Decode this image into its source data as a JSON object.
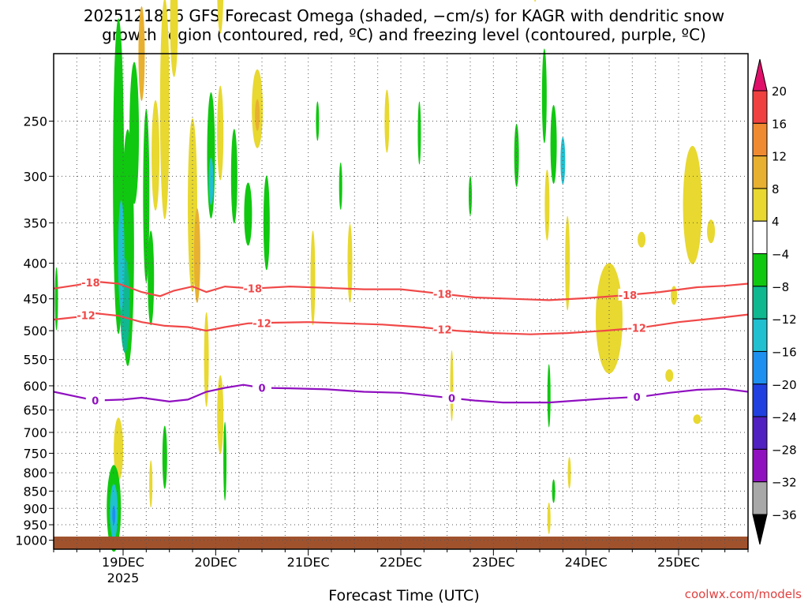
{
  "chart_data": {
    "type": "heatmap",
    "title_line1": "2025121806 GFS Forecast Omega (shaded, −cm/s) for KAGR with dendritic snow",
    "title_line2": "growth region (contoured, red, ºC) and freezing level (contoured, purple, ºC)",
    "xlabel": "Forecast Time (UTC)",
    "ylabel": "",
    "x_ticks": [
      {
        "label": "19DEC",
        "sub": "2025",
        "day": 1
      },
      {
        "label": "20DEC",
        "sub": "",
        "day": 2
      },
      {
        "label": "21DEC",
        "sub": "",
        "day": 3
      },
      {
        "label": "22DEC",
        "sub": "",
        "day": 4
      },
      {
        "label": "23DEC",
        "sub": "",
        "day": 5
      },
      {
        "label": "24DEC",
        "sub": "",
        "day": 6
      },
      {
        "label": "25DEC",
        "sub": "",
        "day": 7
      }
    ],
    "xlim_days": [
      -0.75,
      6.75
    ],
    "y_ticks": [
      250,
      300,
      350,
      400,
      450,
      500,
      550,
      600,
      650,
      700,
      750,
      800,
      850,
      900,
      950,
      1000
    ],
    "ylim_hpa": [
      200,
      1030
    ],
    "y_scale": "log",
    "grid": true,
    "colorbar": {
      "labels": [
        "20",
        "16",
        "12",
        "8",
        "4",
        "−4",
        "−8",
        "−12",
        "−16",
        "−20",
        "−24",
        "−28",
        "−32",
        "−36"
      ],
      "colors": [
        "#f04040",
        "#f08a30",
        "#e8b030",
        "#e8d830",
        "#ffffff",
        "#10c810",
        "#10b890",
        "#20c0d0",
        "#1e90f0",
        "#2040e0",
        "#5020c0",
        "#9010c0",
        "#a8a8a8"
      ],
      "top_color": "#e0106a",
      "bottom_color": "#000000"
    },
    "contours": [
      {
        "label": "-18",
        "color": "#f04848",
        "points": [
          [
            -0.75,
            435
          ],
          [
            -0.5,
            430
          ],
          [
            -0.3,
            425
          ],
          [
            -0.05,
            428
          ],
          [
            0.2,
            440
          ],
          [
            0.4,
            446
          ],
          [
            0.55,
            438
          ],
          [
            0.75,
            432
          ],
          [
            0.9,
            440
          ],
          [
            1.1,
            432
          ],
          [
            1.4,
            435
          ],
          [
            1.8,
            432
          ],
          [
            2.2,
            434
          ],
          [
            2.6,
            436
          ],
          [
            3.0,
            436
          ],
          [
            3.4,
            442
          ],
          [
            3.8,
            448
          ],
          [
            4.2,
            450
          ],
          [
            4.6,
            452
          ],
          [
            5.0,
            449
          ],
          [
            5.4,
            445
          ],
          [
            5.8,
            440
          ],
          [
            6.2,
            433
          ],
          [
            6.5,
            431
          ],
          [
            6.75,
            428
          ]
        ],
        "label_days": [
          -0.35,
          1.4,
          3.45,
          5.45
        ]
      },
      {
        "label": "-12",
        "color": "#f04848",
        "points": [
          [
            -0.75,
            482
          ],
          [
            -0.5,
            478
          ],
          [
            -0.3,
            472
          ],
          [
            -0.05,
            476
          ],
          [
            0.2,
            486
          ],
          [
            0.45,
            492
          ],
          [
            0.7,
            494
          ],
          [
            0.9,
            500
          ],
          [
            1.1,
            494
          ],
          [
            1.35,
            488
          ],
          [
            1.6,
            487
          ],
          [
            2.0,
            486
          ],
          [
            2.4,
            488
          ],
          [
            2.8,
            490
          ],
          [
            3.2,
            494
          ],
          [
            3.6,
            500
          ],
          [
            4.0,
            504
          ],
          [
            4.4,
            506
          ],
          [
            4.8,
            504
          ],
          [
            5.2,
            500
          ],
          [
            5.6,
            495
          ],
          [
            6.0,
            486
          ],
          [
            6.4,
            480
          ],
          [
            6.75,
            474
          ]
        ],
        "label_days": [
          -0.4,
          1.5,
          3.45,
          5.55
        ]
      },
      {
        "label": "0",
        "color": "#9010c0",
        "points": [
          [
            -0.75,
            612
          ],
          [
            -0.5,
            622
          ],
          [
            -0.3,
            630
          ],
          [
            0.0,
            628
          ],
          [
            0.2,
            624
          ],
          [
            0.5,
            632
          ],
          [
            0.7,
            628
          ],
          [
            0.9,
            612
          ],
          [
            1.1,
            604
          ],
          [
            1.3,
            598
          ],
          [
            1.5,
            604
          ],
          [
            1.8,
            605
          ],
          [
            2.2,
            607
          ],
          [
            2.6,
            612
          ],
          [
            3.0,
            614
          ],
          [
            3.4,
            622
          ],
          [
            3.8,
            630
          ],
          [
            4.1,
            634
          ],
          [
            4.3,
            634
          ],
          [
            4.6,
            634
          ],
          [
            4.9,
            630
          ],
          [
            5.2,
            626
          ],
          [
            5.6,
            622
          ],
          [
            5.9,
            614
          ],
          [
            6.2,
            608
          ],
          [
            6.5,
            606
          ],
          [
            6.75,
            612
          ]
        ],
        "label_days": [
          -0.3,
          1.5,
          3.55,
          5.55
        ]
      }
    ]
  },
  "credit": "coolwx.com/models"
}
